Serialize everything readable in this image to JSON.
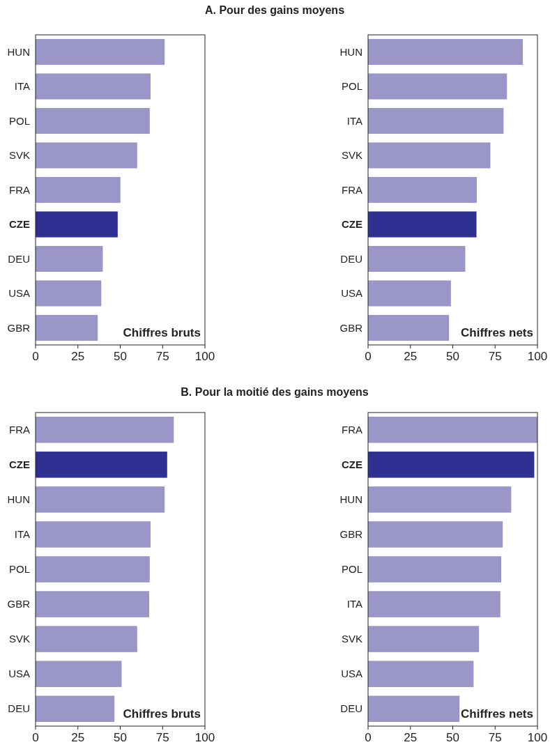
{
  "chart_data": [
    {
      "type": "bar",
      "orientation": "horizontal",
      "title": "A. Pour des gains moyens",
      "categories": [
        "HUN",
        "ITA",
        "POL",
        "SVK",
        "FRA",
        "CZE",
        "DEU",
        "USA",
        "GBR"
      ],
      "values": [
        76.2,
        67.9,
        67.4,
        60,
        50.1,
        48.5,
        39.7,
        38.8,
        36.7
      ],
      "colors": [
        "#9b96c8",
        "#9b96c8",
        "#9b96c8",
        "#9b96c8",
        "#9b96c8",
        "#2e3192",
        "#9b96c8",
        "#9b96c8",
        "#9b96c8"
      ],
      "xlim": [
        0,
        100
      ],
      "xticks": [
        0,
        25,
        50,
        75,
        100
      ],
      "annotations": [
        "Chiffres bruts"
      ]
    },
    {
      "type": "bar",
      "orientation": "horizontal",
      "categories": [
        "HUN",
        "POL",
        "ITA",
        "SVK",
        "FRA",
        "CZE",
        "DEU",
        "USA",
        "GBR"
      ],
      "values": [
        91.4,
        82,
        80,
        72.2,
        64.2,
        64,
        57.4,
        48.9,
        47.8
      ],
      "colors": [
        "#9b96c8",
        "#9b96c8",
        "#9b96c8",
        "#9b96c8",
        "#9b96c8",
        "#2e3192",
        "#9b96c8",
        "#9b96c8",
        "#9b96c8"
      ],
      "xlim": [
        0,
        100
      ],
      "xticks": [
        0,
        25,
        50,
        75,
        100
      ],
      "annotations": [
        "Chiffres nets"
      ]
    },
    {
      "type": "bar",
      "orientation": "horizontal",
      "title": "B. Pour la moitié des gains moyens",
      "categories": [
        "FRA",
        "CZE",
        "HUN",
        "ITA",
        "POL",
        "GBR",
        "SVK",
        "USA",
        "DEU"
      ],
      "values": [
        81.6,
        77.7,
        76.2,
        67.9,
        67.4,
        67.1,
        60,
        50.8,
        46.6
      ],
      "colors": [
        "#9b96c8",
        "#2e3192",
        "#9b96c8",
        "#9b96c8",
        "#9b96c8",
        "#9b96c8",
        "#9b96c8",
        "#9b96c8",
        "#9b96c8"
      ],
      "xlim": [
        0,
        100
      ],
      "xticks": [
        0,
        25,
        50,
        75,
        100
      ],
      "annotations": [
        "Chiffres bruts"
      ]
    },
    {
      "type": "bar",
      "orientation": "horizontal",
      "categories": [
        "FRA",
        "CZE",
        "HUN",
        "GBR",
        "POL",
        "ITA",
        "SVK",
        "USA",
        "DEU"
      ],
      "values": [
        100,
        98.1,
        84.5,
        79.5,
        78.6,
        78.1,
        65.5,
        62.3,
        54
      ],
      "colors": [
        "#9b96c8",
        "#2e3192",
        "#9b96c8",
        "#9b96c8",
        "#9b96c8",
        "#9b96c8",
        "#9b96c8",
        "#9b96c8",
        "#9b96c8"
      ],
      "xlim": [
        0,
        100
      ],
      "xticks": [
        0,
        25,
        50,
        75,
        100
      ],
      "annotations": [
        "Chiffres nets"
      ]
    }
  ]
}
